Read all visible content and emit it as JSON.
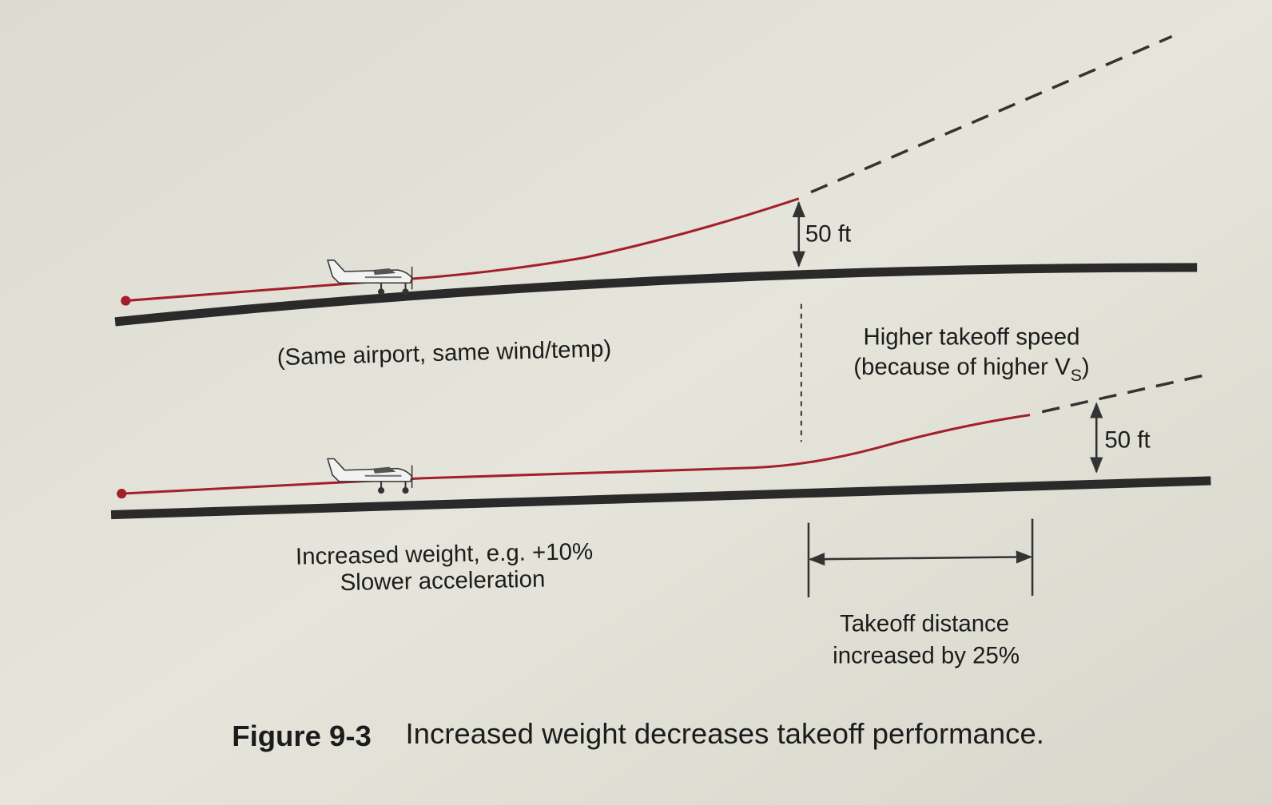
{
  "figure": {
    "top_height_label": "50 ft",
    "same_conditions": "(Same airport, same wind/temp)",
    "higher_speed": {
      "line1": "Higher takeoff speed",
      "line2_prefix": "(because of higher V",
      "line2_subscript": "S",
      "line2_suffix": ")"
    },
    "bottom_height_label": "50 ft",
    "weight": {
      "line1": "Increased weight, e.g. +10%",
      "line2": "Slower acceleration"
    },
    "distance": {
      "line1": "Takeoff distance",
      "line2": "increased by 25%"
    },
    "caption": {
      "label": "Figure 9-3",
      "text": "Increased weight decreases takeoff performance."
    }
  }
}
